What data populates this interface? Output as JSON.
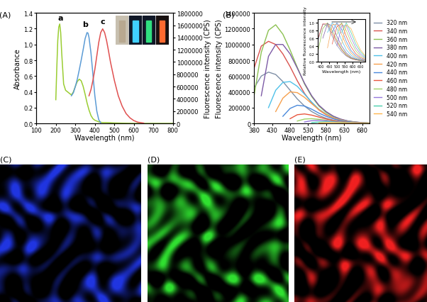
{
  "chart_data": [
    {
      "type": "line",
      "title": "(A)",
      "x_label": "Wavelength (nm)",
      "y_label": "Absorbance",
      "y2_label": "Fluorescence intensity (CPS)",
      "xlim": [
        100,
        800
      ],
      "xticks": [
        100,
        200,
        300,
        400,
        500,
        600,
        700,
        800
      ],
      "ylim": [
        0,
        1.4
      ],
      "yticks": [
        {
          "value": 0.0,
          "label": "0.0"
        },
        {
          "value": 0.2,
          "label": "0.2"
        },
        {
          "value": 0.4,
          "label": "0.4"
        },
        {
          "value": 0.6,
          "label": "0.6"
        },
        {
          "value": 0.8,
          "label": "0.8"
        },
        {
          "value": 1.0,
          "label": "1.0"
        },
        {
          "value": 1.2,
          "label": "1.2"
        },
        {
          "value": 1.4,
          "label": "1.4"
        }
      ],
      "y2lim": [
        0,
        1800000
      ],
      "y2ticks": [
        0,
        200000,
        400000,
        600000,
        800000,
        1000000,
        1200000,
        1400000,
        1600000,
        1800000
      ],
      "series": [
        {
          "color": "#9acd32",
          "x": [
            200,
            205,
            210,
            215,
            220,
            225,
            230,
            240,
            250,
            260,
            270,
            280,
            290,
            300,
            310,
            320,
            330,
            340,
            350,
            360,
            370,
            380,
            390,
            400,
            420,
            440,
            460,
            500,
            600,
            700,
            800
          ],
          "values": [
            0.3,
            0.7,
            1.05,
            1.22,
            1.26,
            1.15,
            0.9,
            0.5,
            0.42,
            0.4,
            0.38,
            0.36,
            0.4,
            0.47,
            0.53,
            0.56,
            0.54,
            0.47,
            0.37,
            0.26,
            0.17,
            0.1,
            0.06,
            0.04,
            0.02,
            0.01,
            0.01,
            0.005,
            0,
            0,
            0
          ]
        },
        {
          "color": "#5b9bd5",
          "axis": "y2",
          "x": [
            280,
            290,
            300,
            310,
            320,
            330,
            340,
            350,
            360,
            365,
            370,
            380,
            390,
            400,
            410,
            420,
            430
          ],
          "values": [
            450000,
            500000,
            600000,
            720000,
            870000,
            1030000,
            1200000,
            1380000,
            1480000,
            1470000,
            1400000,
            1150000,
            800000,
            450000,
            200000,
            60000,
            10000
          ]
        },
        {
          "color": "#e05050",
          "axis": "y2",
          "x": [
            370,
            380,
            390,
            400,
            410,
            420,
            430,
            440,
            450,
            460,
            470,
            480,
            500,
            520,
            540,
            560,
            580,
            600,
            620,
            650
          ],
          "values": [
            450000,
            550000,
            700000,
            880000,
            1100000,
            1320000,
            1480000,
            1540000,
            1480000,
            1350000,
            1180000,
            1000000,
            700000,
            450000,
            280000,
            160000,
            90000,
            45000,
            20000,
            5000
          ]
        }
      ],
      "annotations": [
        {
          "text": "a",
          "x": 225,
          "y": 1.29
        },
        {
          "text": "b",
          "x": 352,
          "y": 1560000,
          "axis": "y2"
        },
        {
          "text": "c",
          "x": 440,
          "y": 1610000,
          "axis": "y2"
        }
      ]
    },
    {
      "type": "line",
      "title": "(B)",
      "x_label": "Wavelength (nm)",
      "y_label": "Fluorescence intensity (CPS)",
      "xlim": [
        380,
        700
      ],
      "xticks": [
        380,
        430,
        480,
        530,
        580,
        630,
        680
      ],
      "ylim": [
        0,
        1400000
      ],
      "yticks": [
        0,
        200000,
        400000,
        600000,
        800000,
        1000000,
        1200000,
        1400000
      ],
      "legend": "right",
      "x": [
        380,
        400,
        420,
        440,
        460,
        480,
        500,
        520,
        540,
        560,
        580,
        600,
        620,
        640,
        660,
        680,
        700
      ],
      "series": [
        {
          "name": "320 nm",
          "color": "#7f8fa6",
          "values": [
            450000,
            600000,
            650000,
            620000,
            530000,
            420000,
            310000,
            220000,
            150000,
            100000,
            65000,
            40000,
            25000,
            15000,
            8000,
            4000,
            2000
          ]
        },
        {
          "name": "340 nm",
          "color": "#d9534f",
          "values": [
            700000,
            980000,
            1040000,
            1000000,
            880000,
            720000,
            540000,
            380000,
            260000,
            170000,
            110000,
            70000,
            42000,
            25000,
            14000,
            7000,
            3000
          ]
        },
        {
          "name": "360 nm",
          "color": "#8cc152",
          "values": [
            350000,
            900000,
            1180000,
            1250000,
            1130000,
            930000,
            710000,
            500000,
            340000,
            220000,
            140000,
            88000,
            52000,
            30000,
            17000,
            9000,
            4000
          ]
        },
        {
          "name": "380 nm",
          "color": "#7d5ba6",
          "values": [
            null,
            350000,
            850000,
            1000000,
            1000000,
            880000,
            700000,
            510000,
            350000,
            230000,
            150000,
            92000,
            55000,
            32000,
            18000,
            10000,
            5000
          ]
        },
        {
          "name": "400 nm",
          "color": "#4fc1e9",
          "values": [
            null,
            null,
            200000,
            420000,
            520000,
            530000,
            470000,
            370000,
            270000,
            180000,
            120000,
            75000,
            45000,
            27000,
            15000,
            8000,
            4000
          ]
        },
        {
          "name": "420 nm",
          "color": "#f6a04d",
          "values": [
            null,
            null,
            null,
            150000,
            320000,
            400000,
            390000,
            330000,
            250000,
            175000,
            115000,
            72000,
            44000,
            26000,
            15000,
            8000,
            4000
          ]
        },
        {
          "name": "440 nm",
          "color": "#4a89dc",
          "values": [
            null,
            null,
            null,
            null,
            90000,
            190000,
            230000,
            220000,
            180000,
            130000,
            90000,
            58000,
            36000,
            21000,
            12000,
            6000,
            3000
          ]
        },
        {
          "name": "460 nm",
          "color": "#e9573f",
          "values": [
            null,
            null,
            null,
            null,
            null,
            60000,
            110000,
            120000,
            105000,
            80000,
            56000,
            37000,
            23000,
            14000,
            8000,
            4000,
            2000
          ]
        },
        {
          "name": "480 nm",
          "color": "#a0d468",
          "values": [
            null,
            null,
            null,
            null,
            null,
            null,
            30000,
            55000,
            60000,
            52000,
            40000,
            28000,
            18000,
            11000,
            6000,
            3000,
            1500
          ]
        },
        {
          "name": "500 nm",
          "color": "#967adc",
          "values": [
            null,
            null,
            null,
            null,
            null,
            null,
            null,
            18000,
            35000,
            40000,
            34000,
            25000,
            16000,
            10000,
            6000,
            3000,
            1500
          ]
        },
        {
          "name": "520 nm",
          "color": "#48cfad",
          "values": [
            null,
            null,
            null,
            null,
            null,
            null,
            null,
            null,
            10000,
            18000,
            20000,
            17000,
            12000,
            8000,
            5000,
            2500,
            1200
          ]
        },
        {
          "name": "540 nm",
          "color": "#ffb74d",
          "values": [
            null,
            null,
            null,
            null,
            null,
            null,
            null,
            null,
            null,
            5000,
            9000,
            10000,
            8500,
            6000,
            3500,
            2000,
            1000
          ]
        }
      ]
    },
    {
      "type": "line",
      "x_label": "Wavelength (nm)",
      "y_label": "Relative fluorescence intensity",
      "xlim": [
        380,
        680
      ],
      "xticks": [
        400,
        450,
        500,
        550,
        600,
        650
      ],
      "ylim": [
        0,
        1.1
      ],
      "yticks": [
        {
          "value": 0.0,
          "label": "0.0"
        },
        {
          "value": 0.2,
          "label": "0.2"
        },
        {
          "value": 0.4,
          "label": "0.4"
        },
        {
          "value": 0.6,
          "label": "0.6"
        },
        {
          "value": 0.8,
          "label": "0.8"
        },
        {
          "value": 1.0,
          "label": "1.0"
        }
      ],
      "x": [
        380,
        410,
        440,
        470,
        500,
        530,
        560,
        590,
        620,
        650,
        680
      ],
      "series": [
        {
          "color": "#7f8fa6",
          "values": [
            0.55,
            0.97,
            0.92,
            0.65,
            0.42,
            0.25,
            0.14,
            0.07,
            0.04,
            0.02,
            0.01
          ]
        },
        {
          "color": "#d9534f",
          "values": [
            0.6,
            0.97,
            0.97,
            0.72,
            0.5,
            0.3,
            0.16,
            0.08,
            0.04,
            0.02,
            0.01
          ]
        },
        {
          "color": "#8cc152",
          "values": [
            0.28,
            0.85,
            1.0,
            0.8,
            0.55,
            0.33,
            0.18,
            0.09,
            0.05,
            0.02,
            0.01
          ]
        },
        {
          "color": "#7d5ba6",
          "values": [
            null,
            0.6,
            0.98,
            0.92,
            0.65,
            0.4,
            0.22,
            0.11,
            0.06,
            0.03,
            0.01
          ]
        },
        {
          "color": "#4fc1e9",
          "values": [
            null,
            null,
            0.75,
            1.0,
            0.85,
            0.55,
            0.3,
            0.16,
            0.08,
            0.04,
            0.02
          ]
        },
        {
          "color": "#f6a04d",
          "values": [
            null,
            null,
            0.35,
            0.95,
            0.97,
            0.7,
            0.42,
            0.22,
            0.11,
            0.05,
            0.02
          ]
        },
        {
          "color": "#4a89dc",
          "values": [
            null,
            null,
            null,
            0.75,
            1.0,
            0.83,
            0.52,
            0.28,
            0.15,
            0.07,
            0.03
          ]
        },
        {
          "color": "#e9573f",
          "values": [
            null,
            null,
            null,
            0.45,
            0.9,
            0.98,
            0.65,
            0.38,
            0.2,
            0.1,
            0.05
          ]
        },
        {
          "color": "#a0d468",
          "values": [
            null,
            null,
            null,
            null,
            0.7,
            1.0,
            0.8,
            0.5,
            0.28,
            0.14,
            0.07
          ]
        },
        {
          "color": "#967adc",
          "values": [
            null,
            null,
            null,
            null,
            0.4,
            0.92,
            0.93,
            0.62,
            0.36,
            0.19,
            0.09
          ]
        },
        {
          "color": "#48cfad",
          "values": [
            null,
            null,
            null,
            null,
            null,
            0.75,
            1.0,
            0.75,
            0.45,
            0.25,
            0.12
          ]
        },
        {
          "color": "#ffb74d",
          "values": [
            null,
            null,
            null,
            null,
            null,
            0.45,
            0.95,
            0.85,
            0.55,
            0.3,
            0.15
          ]
        }
      ]
    },
    {
      "type": "image",
      "title": "(C)",
      "color": "#2035e0"
    },
    {
      "type": "image",
      "title": "(D)",
      "color": "#30e030"
    },
    {
      "type": "image",
      "title": "(E)",
      "color": "#f02020"
    }
  ]
}
